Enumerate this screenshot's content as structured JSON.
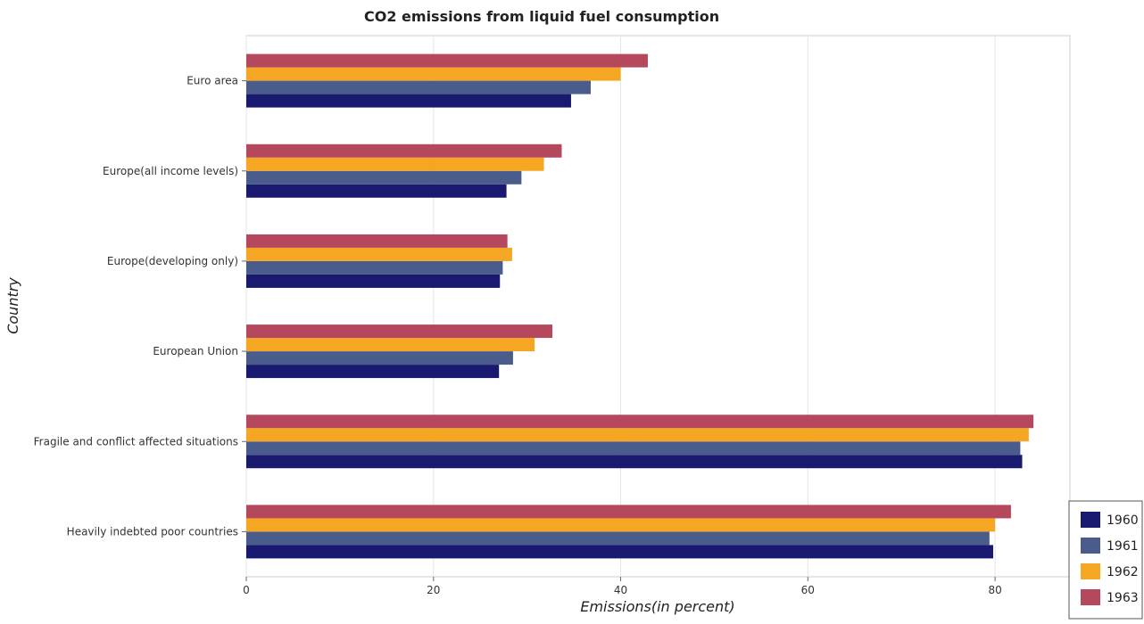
{
  "chart_data": {
    "type": "bar",
    "orientation": "horizontal",
    "title": "CO2 emissions from liquid fuel consumption",
    "xlabel": "Emissions(in percent)",
    "ylabel": "Country",
    "xlim": [
      0,
      88
    ],
    "xticks": [
      0,
      20,
      40,
      60,
      80
    ],
    "grid": true,
    "legend_position": "bottom-right",
    "categories": [
      "Euro area",
      "Europe(all income levels)",
      "Europe(developing only)",
      "European Union",
      "Fragile and conflict affected situations",
      "Heavily indebted poor countries"
    ],
    "series": [
      {
        "name": "1960",
        "color": "#191970",
        "values": [
          34.7,
          27.8,
          27.1,
          27.0,
          82.9,
          79.8
        ]
      },
      {
        "name": "1961",
        "color": "#4a5c8c",
        "values": [
          36.8,
          29.4,
          27.4,
          28.5,
          82.7,
          79.4
        ]
      },
      {
        "name": "1962",
        "color": "#f5a623",
        "values": [
          40.0,
          31.8,
          28.4,
          30.8,
          83.6,
          80.0
        ]
      },
      {
        "name": "1963",
        "color": "#b5485d",
        "values": [
          42.9,
          33.7,
          27.9,
          32.7,
          84.1,
          81.7
        ]
      }
    ]
  }
}
